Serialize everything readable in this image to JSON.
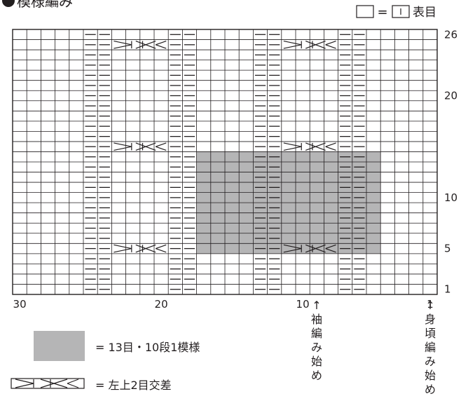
{
  "title": "模様編み",
  "legend_top": {
    "equals": "=",
    "label": "表目"
  },
  "grid": {
    "columns": 30,
    "rows": 26,
    "purl_column_pairs": [
      [
        24,
        25
      ],
      [
        18,
        19
      ],
      [
        12,
        13
      ],
      [
        6,
        7
      ]
    ],
    "cross_rows": [
      5,
      15,
      25
    ],
    "cross_column_ranges": [
      [
        20,
        23
      ],
      [
        8,
        11
      ]
    ],
    "repeat_block": {
      "from_col": 5,
      "to_col": 17,
      "from_row": 5,
      "to_row": 14
    },
    "row_labels": [
      {
        "row": 1,
        "text": "1"
      },
      {
        "row": 5,
        "text": "5"
      },
      {
        "row": 10,
        "text": "10"
      },
      {
        "row": 20,
        "text": "20"
      },
      {
        "row": 26,
        "text": "26"
      }
    ],
    "col_labels": [
      {
        "col": 30,
        "text": "30"
      },
      {
        "col": 20,
        "text": "20"
      },
      {
        "col": 10,
        "text": "10"
      },
      {
        "col": 1,
        "text": "1"
      }
    ]
  },
  "annotations": {
    "sleeve_start": "↑袖編み始め",
    "body_start": "↑身頃編み始め"
  },
  "legend_bottom": {
    "repeat_text": "= 13目・10段1模様",
    "cross_text": "= 左上2目交差"
  },
  "colors": {
    "line": "#231f20",
    "shade": "#b5b5b6"
  }
}
